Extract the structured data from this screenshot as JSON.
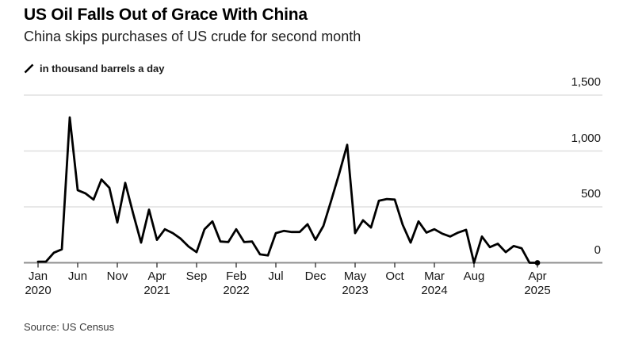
{
  "header": {
    "title": "US Oil Falls Out of Grace With China",
    "subtitle": "China skips purchases of US crude for second month"
  },
  "legend": {
    "icon": "line-series-marker",
    "label": "in thousand barrels a day"
  },
  "footer": {
    "source": "Source: US Census"
  },
  "colors": {
    "background": "#ffffff",
    "line": "#000000",
    "end_dot": "#000000",
    "grid": "#d9d9d9",
    "zero_axis": "#8f8f8f",
    "tick": "#3a3a3a",
    "axis_text": "#151515"
  },
  "chart_data": {
    "type": "line",
    "title": "US Oil Falls Out of Grace With China",
    "subtitle": "China skips purchases of US crude for second month",
    "ylabel": "thousand barrels a day",
    "xlabel": "",
    "ylim": [
      0,
      1500
    ],
    "grid": "horizontal",
    "legend_position": "top-left",
    "end_dot": true,
    "months": [
      "2020-01",
      "2020-02",
      "2020-03",
      "2020-04",
      "2020-05",
      "2020-06",
      "2020-07",
      "2020-08",
      "2020-09",
      "2020-10",
      "2020-11",
      "2020-12",
      "2021-01",
      "2021-02",
      "2021-03",
      "2021-04",
      "2021-05",
      "2021-06",
      "2021-07",
      "2021-08",
      "2021-09",
      "2021-10",
      "2021-11",
      "2021-12",
      "2022-01",
      "2022-02",
      "2022-03",
      "2022-04",
      "2022-05",
      "2022-06",
      "2022-07",
      "2022-08",
      "2022-09",
      "2022-10",
      "2022-11",
      "2022-12",
      "2023-01",
      "2023-02",
      "2023-03",
      "2023-04",
      "2023-05",
      "2023-06",
      "2023-07",
      "2023-08",
      "2023-09",
      "2023-10",
      "2023-11",
      "2023-12",
      "2024-01",
      "2024-02",
      "2024-03",
      "2024-04",
      "2024-05",
      "2024-06",
      "2024-07",
      "2024-08",
      "2024-09",
      "2024-10",
      "2024-11",
      "2024-12",
      "2025-01",
      "2025-02",
      "2025-03",
      "2025-04"
    ],
    "values": [
      10,
      10,
      90,
      120,
      1300,
      650,
      620,
      565,
      745,
      670,
      360,
      715,
      440,
      180,
      475,
      205,
      300,
      265,
      215,
      145,
      95,
      300,
      370,
      190,
      185,
      300,
      185,
      190,
      75,
      65,
      265,
      285,
      275,
      275,
      345,
      205,
      330,
      560,
      800,
      1055,
      265,
      380,
      315,
      555,
      570,
      565,
      340,
      180,
      370,
      270,
      300,
      260,
      235,
      270,
      295,
      0,
      235,
      140,
      170,
      95,
      150,
      130,
      0,
      0
    ],
    "y_ticks": [
      {
        "label": "0",
        "value": 0
      },
      {
        "label": "500",
        "value": 500
      },
      {
        "label": "1,000",
        "value": 1000
      },
      {
        "label": "1,500",
        "value": 1500
      }
    ],
    "x_ticks": [
      {
        "month": "Jan",
        "year": "2020",
        "index": 0
      },
      {
        "month": "Jun",
        "index": 5
      },
      {
        "month": "Nov",
        "index": 10
      },
      {
        "month": "Apr",
        "year": "2021",
        "index": 15
      },
      {
        "month": "Sep",
        "index": 20
      },
      {
        "month": "Feb",
        "year": "2022",
        "index": 25
      },
      {
        "month": "Jul",
        "index": 30
      },
      {
        "month": "Dec",
        "index": 35
      },
      {
        "month": "May",
        "year": "2023",
        "index": 40
      },
      {
        "month": "Oct",
        "index": 45
      },
      {
        "month": "Mar",
        "year": "2024",
        "index": 50
      },
      {
        "month": "Aug",
        "index": 55
      },
      {
        "month": "Apr",
        "year": "2025",
        "index": 63
      }
    ]
  }
}
